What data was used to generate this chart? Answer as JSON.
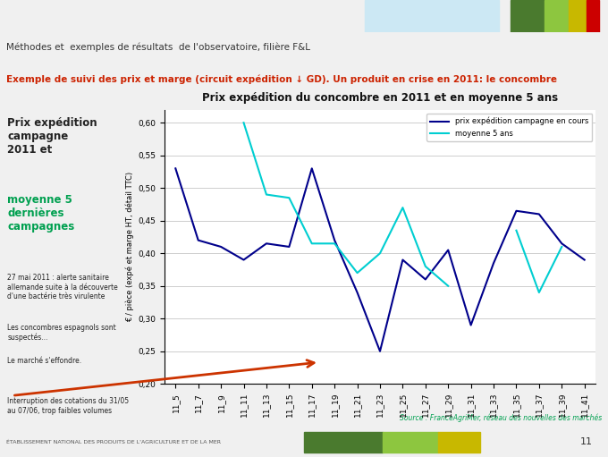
{
  "title": "Prix expédition du concombre en 2011 et en moyenne 5 ans",
  "ylabel": "€ / pièce (expé et marge HT, détail TTC)",
  "xlabels": [
    "11_5",
    "11_7",
    "11_9",
    "11_11",
    "11_13",
    "11_15",
    "11_17",
    "11_19",
    "11_21",
    "11_23",
    "11_25",
    "11_27",
    "11_29",
    "11_31",
    "11_33",
    "11_35",
    "11_37",
    "11_39",
    "11_41"
  ],
  "ylim": [
    0.2,
    0.62
  ],
  "yticks": [
    0.2,
    0.25,
    0.3,
    0.35,
    0.4,
    0.45,
    0.5,
    0.55,
    0.6
  ],
  "series_campagne": [
    0.53,
    0.42,
    0.41,
    0.39,
    0.415,
    0.41,
    0.53,
    0.42,
    0.34,
    0.25,
    0.39,
    0.36,
    0.405,
    0.29,
    0.385,
    0.465,
    0.46,
    0.415,
    0.39
  ],
  "series_moyenne": [
    null,
    null,
    null,
    0.6,
    0.49,
    0.485,
    0.415,
    0.415,
    0.37,
    0.4,
    0.47,
    0.38,
    0.35,
    null,
    null,
    0.435,
    0.34,
    0.41,
    null
  ],
  "color_campagne": "#00008B",
  "color_moyenne": "#00CED1",
  "legend_campagne": "prix expédition campagne en cours",
  "legend_moyenne": "moyenne 5 ans",
  "header_text1": "Méthodes et  exemples de résultats  de l'observatoire, filière F&L",
  "header_text2": "Exemple de suivi des prix et marge (circuit expédition ↓ GD). Un produit en crise en 2011: le concombre",
  "annotation1": "27 mai 2011 : alerte sanitaire\nallemande suite à la découverte\nd'une bactérie très virulente",
  "annotation2": "Les concombres espagnols sont\nsuspectés...",
  "annotation3": "Le marché s'effondre.",
  "annotation4": "Interruption des cotations du 31/05\nau 07/06, trop faibles volumes",
  "source_text": "Source : FranceAgriMer, réseau des nouvelles des marchés",
  "footer_text": "ÉTABLISSEMENT NATIONAL DES PRODUITS DE L'AGRICULTURE ET DE LA MER",
  "page_num": "11",
  "arrow_color": "#cc3300"
}
